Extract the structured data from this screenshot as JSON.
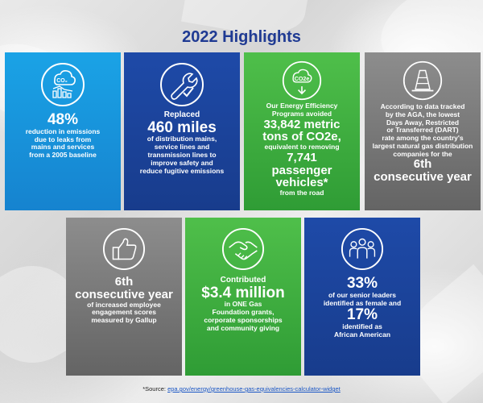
{
  "title": "2022 Highlights",
  "colors": {
    "title": "#1f3a93",
    "light_blue": "#1aa3e6",
    "navy": "#1e4aa8",
    "green": "#4fbf4a",
    "gray": "#777777"
  },
  "cards": [
    {
      "icon": "co2-emissions-chart-icon",
      "big": "48%",
      "lines": [
        "reduction in emissions",
        "due to leaks from",
        "mains and services",
        "from a 2005 baseline"
      ]
    },
    {
      "icon": "wrench-check-icon",
      "pre": "Replaced",
      "big": "460 miles",
      "lines": [
        "of distribution mains,",
        "service lines and",
        "transmission lines to",
        "improve safety and",
        "reduce fugitive emissions"
      ]
    },
    {
      "icon": "co2e-arrow-icon",
      "pre_lines": [
        "Our Energy Efficiency",
        "Programs avoided"
      ],
      "big1": "33,842 metric",
      "big2": "tons of CO2e,",
      "mid": "equivalent to removing",
      "big3": "7,741",
      "big4": "passenger vehicles*",
      "post": "from the road"
    },
    {
      "icon": "traffic-cone-icon",
      "lines": [
        "According to data tracked",
        "by the AGA, the lowest",
        "Days Away, Restricted",
        "or Transferred (DART)",
        "rate among the country's",
        "largest natural gas distribution",
        "companies for the"
      ],
      "big1": "6th",
      "big2": "consecutive year"
    },
    {
      "icon": "thumbs-up-icon",
      "big1": "6th",
      "big2": "consecutive year",
      "lines": [
        "of increased employee",
        "engagement scores",
        "measured by Gallup"
      ]
    },
    {
      "icon": "handshake-icon",
      "pre": "Contributed",
      "big": "$3.4 million",
      "lines": [
        "in ONE Gas",
        "Foundation grants,",
        "corporate sponsorships",
        "and community giving"
      ]
    },
    {
      "icon": "people-group-icon",
      "big1": "33%",
      "lines1": [
        "of our senior leaders",
        "identified as female and"
      ],
      "big2": "17%",
      "lines2": [
        "identified as",
        "African American"
      ]
    }
  ],
  "source": {
    "prefix": "*Source: ",
    "link": "epa.gov/energy/greenhouse-gas-equivalencies-calculator-widget"
  }
}
